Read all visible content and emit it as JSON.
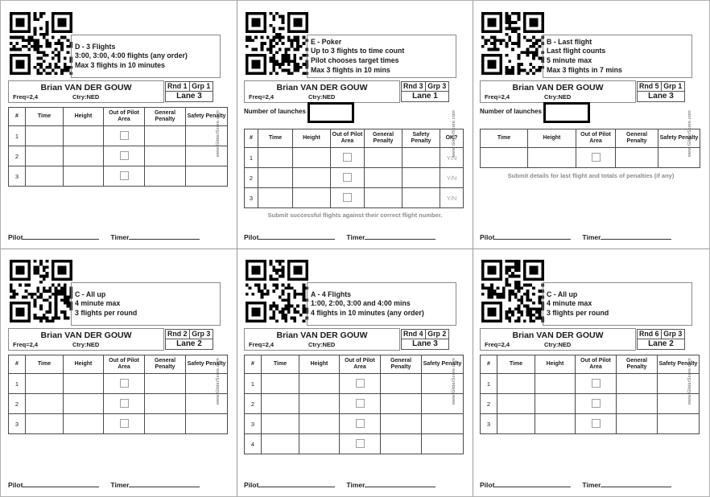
{
  "watermark": "www.GliderScore.com",
  "footer": {
    "pilot_label": "Pilot",
    "timer_label": "Timer"
  },
  "cards": [
    {
      "task_lines": [
        "D - 3 Flights",
        "3:00, 3:00, 4:00 flights (any order)",
        "Max 3 flights in 10 minutes"
      ],
      "pilot_name": "Brian VAN DER GOUW",
      "freq": "Freq=2,4",
      "ctry": "Ctry:NED",
      "rnd": "Rnd 1",
      "grp": "Grp 1",
      "lane": "Lane 3",
      "columns": [
        "#",
        "Time",
        "Height",
        "Out of Pilot Area",
        "General Penalty",
        "Safety Penalty"
      ],
      "rows": [
        "1",
        "2",
        "3"
      ]
    },
    {
      "task_lines": [
        "E - Poker",
        "Up to 3 flights to time count",
        "Pilot chooses target times",
        "Max 3 flights in 10 mins"
      ],
      "pilot_name": "Brian VAN DER GOUW",
      "freq": "Freq=2,4",
      "ctry": "Ctry:NED",
      "rnd": "Rnd 3",
      "grp": "Grp 3",
      "lane": "Lane 1",
      "launches_label": "Number of launches",
      "columns": [
        "#",
        "Time",
        "Height",
        "Out of Pilot Area",
        "General Penalty",
        "Safety Penalty",
        "OK?"
      ],
      "rows": [
        "1",
        "2",
        "3"
      ],
      "ok_value": "Y/N",
      "note": "Submit successful flights against their correct flight number."
    },
    {
      "task_lines": [
        "B - Last flight",
        "Last flight counts",
        "5 minute max",
        "Max 3 flights in 7 mins"
      ],
      "pilot_name": "Brian VAN DER GOUW",
      "freq": "Freq=2,4",
      "ctry": "Ctry:NED",
      "rnd": "Rnd 5",
      "grp": "Grp 1",
      "lane": "Lane 3",
      "launches_label": "Number of launches",
      "columns": [
        "Time",
        "Height",
        "Out of Pilot Area",
        "General Penalty",
        "Safety Penalty"
      ],
      "rows": [
        ""
      ],
      "note": "Submit details for last flight and totals of penalties (if any)"
    },
    {
      "task_lines": [
        "C - All up",
        "4 minute max",
        "3 flights per round"
      ],
      "pilot_name": "Brian VAN DER GOUW",
      "freq": "Freq=2,4",
      "ctry": "Ctry:NED",
      "rnd": "Rnd 2",
      "grp": "Grp 3",
      "lane": "Lane 2",
      "columns": [
        "#",
        "Time",
        "Height",
        "Out of Pilot Area",
        "General Penalty",
        "Safety Penalty"
      ],
      "rows": [
        "1",
        "2",
        "3"
      ]
    },
    {
      "task_lines": [
        "A - 4 Flights",
        "1:00, 2:00, 3:00 and 4:00 mins",
        "4 flights in 10 minutes (any order)"
      ],
      "pilot_name": "Brian VAN DER GOUW",
      "freq": "Freq=2,4",
      "ctry": "Ctry:NED",
      "rnd": "Rnd 4",
      "grp": "Grp 2",
      "lane": "Lane 3",
      "columns": [
        "#",
        "Time",
        "Height",
        "Out of Pilot Area",
        "General Penalty",
        "Safety Penalty"
      ],
      "rows": [
        "1",
        "2",
        "3",
        "4"
      ]
    },
    {
      "task_lines": [
        "C - All up",
        "4 minute max",
        "3 flights per round"
      ],
      "pilot_name": "Brian VAN DER GOUW",
      "freq": "Freq=2,4",
      "ctry": "Ctry:NED",
      "rnd": "Rnd 6",
      "grp": "Grp 3",
      "lane": "Lane 2",
      "columns": [
        "#",
        "Time",
        "Height",
        "Out of Pilot Area",
        "General Penalty",
        "Safety Penalty"
      ],
      "rows": [
        "1",
        "2",
        "3"
      ]
    }
  ]
}
